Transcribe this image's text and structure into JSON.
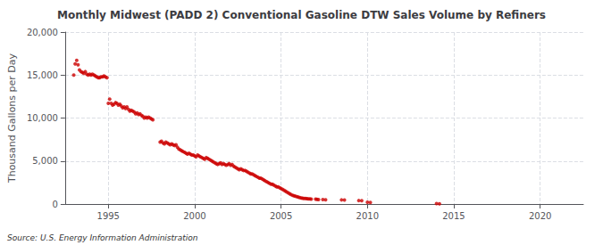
{
  "chart_data": {
    "type": "scatter",
    "title": "Monthly Midwest (PADD 2) Conventional Gasoline DTW Sales Volume by Refiners",
    "ylabel": "Thousand Gallons per Day",
    "source": "Source: U.S. Energy Information Administration",
    "color": "#cc0000",
    "xlim": [
      1992.5,
      2022.5
    ],
    "xticks": [
      1995,
      2000,
      2005,
      2010,
      2015,
      2020
    ],
    "ylim": [
      0,
      20000
    ],
    "yticks": [
      0,
      {
        "value": 5000,
        "label": "5,000"
      },
      {
        "value": 10000,
        "label": "10,000"
      },
      {
        "value": 15000,
        "label": "15,000"
      },
      {
        "value": 20000,
        "label": "20,000"
      }
    ],
    "grid": true,
    "x": [
      1993.0,
      1993.08,
      1993.17,
      1993.25,
      1993.33,
      1993.42,
      1993.5,
      1993.58,
      1993.67,
      1993.75,
      1993.83,
      1993.92,
      1994.0,
      1994.08,
      1994.17,
      1994.25,
      1994.33,
      1994.42,
      1994.5,
      1994.58,
      1994.67,
      1994.75,
      1994.83,
      1994.92,
      1995.0,
      1995.08,
      1995.17,
      1995.25,
      1995.33,
      1995.42,
      1995.5,
      1995.58,
      1995.67,
      1995.75,
      1995.83,
      1995.92,
      1996.0,
      1996.08,
      1996.17,
      1996.25,
      1996.33,
      1996.42,
      1996.5,
      1996.58,
      1996.67,
      1996.75,
      1996.83,
      1996.92,
      1997.0,
      1997.08,
      1997.17,
      1997.25,
      1997.33,
      1997.42,
      1997.5,
      1997.58,
      1998.0,
      1998.08,
      1998.17,
      1998.25,
      1998.33,
      1998.42,
      1998.5,
      1998.58,
      1998.67,
      1998.75,
      1998.83,
      1998.92,
      1999.0,
      1999.08,
      1999.17,
      1999.25,
      1999.33,
      1999.42,
      1999.5,
      1999.58,
      1999.67,
      1999.75,
      1999.83,
      1999.92,
      2000.0,
      2000.08,
      2000.17,
      2000.25,
      2000.33,
      2000.42,
      2000.5,
      2000.58,
      2000.67,
      2000.75,
      2000.83,
      2000.92,
      2001.0,
      2001.08,
      2001.17,
      2001.25,
      2001.33,
      2001.42,
      2001.5,
      2001.58,
      2001.67,
      2001.75,
      2001.83,
      2001.92,
      2002.0,
      2002.08,
      2002.17,
      2002.25,
      2002.33,
      2002.42,
      2002.5,
      2002.58,
      2002.67,
      2002.75,
      2002.83,
      2002.92,
      2003.0,
      2003.08,
      2003.17,
      2003.25,
      2003.33,
      2003.42,
      2003.5,
      2003.58,
      2003.67,
      2003.75,
      2003.83,
      2003.92,
      2004.0,
      2004.08,
      2004.17,
      2004.25,
      2004.33,
      2004.42,
      2004.5,
      2004.58,
      2004.67,
      2004.75,
      2004.83,
      2004.92,
      2005.0,
      2005.08,
      2005.17,
      2005.25,
      2005.33,
      2005.42,
      2005.5,
      2005.58,
      2005.67,
      2005.75,
      2005.83,
      2005.92,
      2006.0,
      2006.08,
      2006.17,
      2006.25,
      2006.33,
      2006.42,
      2006.5,
      2006.58,
      2006.67,
      2006.75,
      2007.0,
      2007.08,
      2007.17,
      2007.42,
      2007.58,
      2008.5,
      2008.67,
      2009.5,
      2009.67,
      2010.0,
      2010.17,
      2014.0,
      2014.17
    ],
    "values": [
      15000,
      16300,
      16700,
      16200,
      15600,
      15400,
      15300,
      15200,
      15400,
      15100,
      15000,
      15100,
      15000,
      15100,
      15000,
      14900,
      14800,
      14700,
      14700,
      14800,
      14800,
      14900,
      14800,
      14700,
      11700,
      12200,
      11700,
      11500,
      11600,
      11800,
      11700,
      11500,
      11600,
      11400,
      11200,
      11300,
      11100,
      11300,
      11000,
      10800,
      10900,
      10800,
      10700,
      10500,
      10600,
      10400,
      10500,
      10300,
      10200,
      10000,
      10100,
      10000,
      10100,
      10000,
      9900,
      9800,
      7200,
      7300,
      7100,
      7000,
      7200,
      7100,
      7000,
      6900,
      7000,
      6900,
      6800,
      6900,
      6600,
      6400,
      6300,
      6200,
      6100,
      6000,
      5900,
      5800,
      5900,
      5800,
      5700,
      5700,
      5600,
      5500,
      5700,
      5600,
      5500,
      5400,
      5300,
      5200,
      5400,
      5300,
      5200,
      5100,
      5000,
      4900,
      4800,
      4700,
      4600,
      4700,
      4800,
      4600,
      4700,
      4600,
      4500,
      4600,
      4700,
      4500,
      4600,
      4400,
      4300,
      4200,
      4100,
      4000,
      4100,
      4000,
      3900,
      3900,
      3800,
      3700,
      3600,
      3500,
      3500,
      3400,
      3300,
      3200,
      3100,
      3000,
      3000,
      2900,
      2800,
      2700,
      2600,
      2500,
      2400,
      2300,
      2300,
      2200,
      2100,
      2000,
      2000,
      1900,
      1800,
      1700,
      1600,
      1500,
      1400,
      1300,
      1200,
      1100,
      1000,
      950,
      900,
      850,
      800,
      750,
      700,
      680,
      650,
      640,
      620,
      600,
      590,
      580,
      560,
      540,
      520,
      510,
      500,
      480,
      470,
      400,
      380,
      200,
      180,
      50,
      30
    ]
  }
}
